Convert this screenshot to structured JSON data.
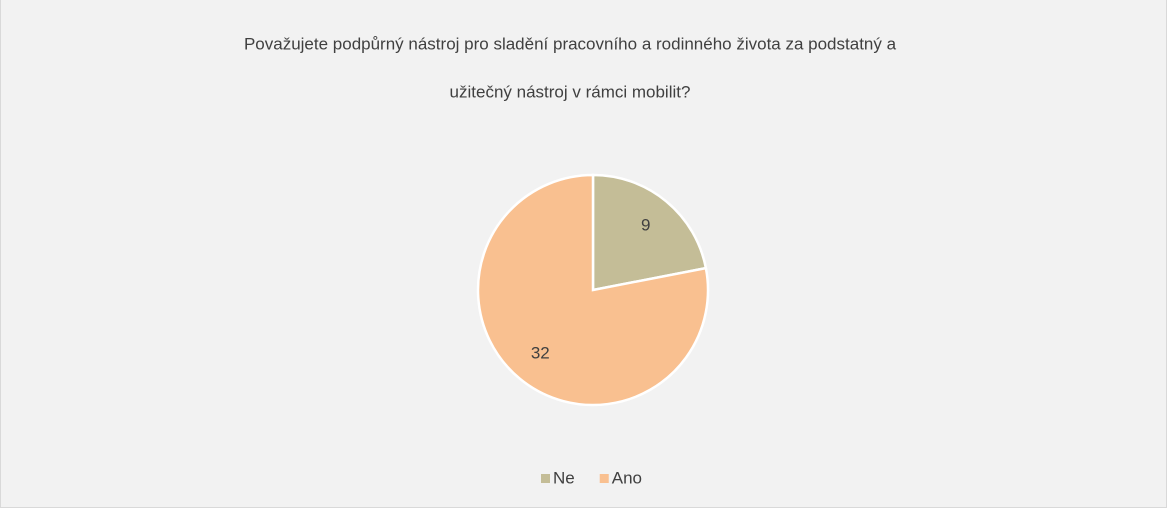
{
  "chart_data": {
    "type": "pie",
    "title": [
      "Považujete podpůrný nástroj pro sladění pracovního a rodinného života za podstatný a",
      "užitečný nástroj v rámci mobilit?"
    ],
    "categories": [
      "Ne",
      "Ano"
    ],
    "values": [
      9,
      32
    ],
    "colors": [
      "#c4bd97",
      "#f9c090"
    ],
    "legend": "bottom"
  }
}
